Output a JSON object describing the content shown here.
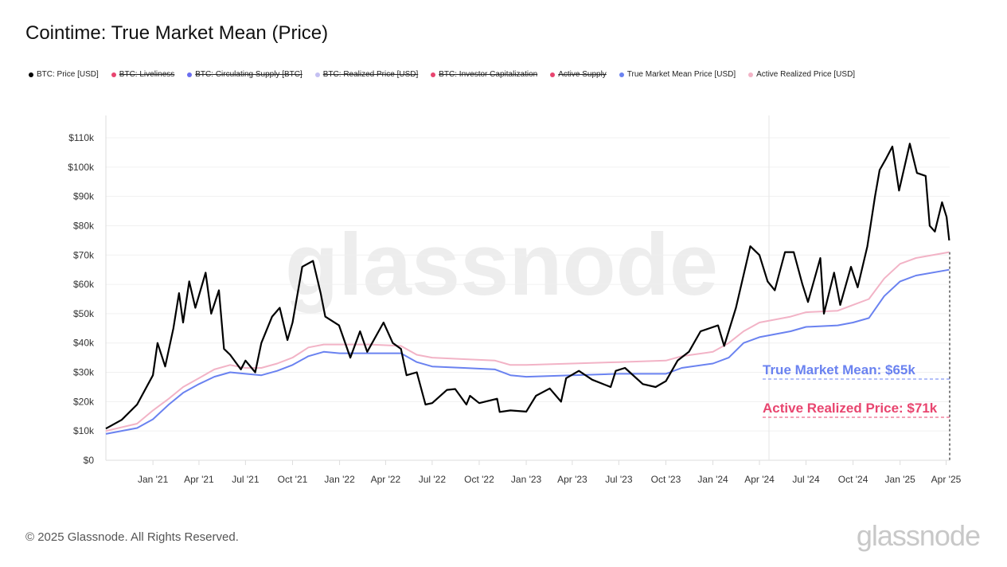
{
  "title": "Cointime: True Market Mean (Price)",
  "legend": [
    {
      "label": "BTC: Price [USD]",
      "color": "#000000",
      "enabled": true
    },
    {
      "label": "BTC: Liveliness",
      "color": "#e8456f",
      "enabled": false
    },
    {
      "label": "BTC: Circulating Supply [BTC]",
      "color": "#6a6ef0",
      "enabled": false
    },
    {
      "label": "BTC: Realized Price [USD]",
      "color": "#c4c0f2",
      "enabled": false
    },
    {
      "label": "BTC: Investor Capitalization",
      "color": "#e8456f",
      "enabled": false
    },
    {
      "label": "Active Supply",
      "color": "#e8456f",
      "enabled": false
    },
    {
      "label": "True Market Mean Price [USD]",
      "color": "#6a82f0",
      "enabled": true
    },
    {
      "label": "Active Realized Price [USD]",
      "color": "#f2b3c6",
      "enabled": true
    }
  ],
  "footer": "© 2025 Glassnode. All Rights Reserved.",
  "logo": "glassnode",
  "chart_data": {
    "type": "line",
    "title": "Cointime: True Market Mean (Price)",
    "xlim": [
      "2020-10-01",
      "2025-04-08"
    ],
    "ylim": [
      0,
      110000
    ],
    "x_ticks": [
      "Jan '21",
      "Apr '21",
      "Jul '21",
      "Oct '21",
      "Jan '22",
      "Apr '22",
      "Jul '22",
      "Oct '22",
      "Jan '23",
      "Apr '23",
      "Jul '23",
      "Oct '23",
      "Jan '24",
      "Apr '24",
      "Jul '24",
      "Oct '24",
      "Jan '25",
      "Apr '25"
    ],
    "x_tick_dates": [
      "2021-01-01",
      "2021-04-01",
      "2021-07-01",
      "2021-10-01",
      "2022-01-01",
      "2022-04-01",
      "2022-07-01",
      "2022-10-01",
      "2023-01-01",
      "2023-04-01",
      "2023-07-01",
      "2023-10-01",
      "2024-01-01",
      "2024-04-01",
      "2024-07-01",
      "2024-10-01",
      "2025-01-01",
      "2025-04-01"
    ],
    "y_ticks": [
      0,
      10000,
      20000,
      30000,
      40000,
      50000,
      60000,
      70000,
      80000,
      90000,
      100000,
      110000
    ],
    "y_tick_labels": [
      "$0",
      "$10k",
      "$20k",
      "$30k",
      "$40k",
      "$50k",
      "$60k",
      "$70k",
      "$80k",
      "$90k",
      "$100k",
      "$110k"
    ],
    "grid": true,
    "series": [
      {
        "name": "BTC: Price [USD]",
        "color": "#000000",
        "points": [
          [
            "2020-10-01",
            10800
          ],
          [
            "2020-11-01",
            13800
          ],
          [
            "2020-12-01",
            19000
          ],
          [
            "2021-01-01",
            29000
          ],
          [
            "2021-01-10",
            40000
          ],
          [
            "2021-01-25",
            32000
          ],
          [
            "2021-02-10",
            45000
          ],
          [
            "2021-02-21",
            57000
          ],
          [
            "2021-03-01",
            47000
          ],
          [
            "2021-03-13",
            61000
          ],
          [
            "2021-03-25",
            52000
          ],
          [
            "2021-04-14",
            64000
          ],
          [
            "2021-04-25",
            50000
          ],
          [
            "2021-05-10",
            58000
          ],
          [
            "2021-05-20",
            38000
          ],
          [
            "2021-06-01",
            36000
          ],
          [
            "2021-06-22",
            31000
          ],
          [
            "2021-07-01",
            34000
          ],
          [
            "2021-07-20",
            30000
          ],
          [
            "2021-08-01",
            40000
          ],
          [
            "2021-08-22",
            49000
          ],
          [
            "2021-09-06",
            52000
          ],
          [
            "2021-09-21",
            41000
          ],
          [
            "2021-10-01",
            47000
          ],
          [
            "2021-10-20",
            66000
          ],
          [
            "2021-11-10",
            68000
          ],
          [
            "2021-11-25",
            57000
          ],
          [
            "2021-12-04",
            49000
          ],
          [
            "2021-12-31",
            46000
          ],
          [
            "2022-01-22",
            35000
          ],
          [
            "2022-02-10",
            44000
          ],
          [
            "2022-02-24",
            37000
          ],
          [
            "2022-03-28",
            47000
          ],
          [
            "2022-04-15",
            40000
          ],
          [
            "2022-05-01",
            38000
          ],
          [
            "2022-05-12",
            29000
          ],
          [
            "2022-06-01",
            30000
          ],
          [
            "2022-06-18",
            19000
          ],
          [
            "2022-07-01",
            19500
          ],
          [
            "2022-07-30",
            24000
          ],
          [
            "2022-08-15",
            24300
          ],
          [
            "2022-09-06",
            19000
          ],
          [
            "2022-09-13",
            22000
          ],
          [
            "2022-10-01",
            19500
          ],
          [
            "2022-11-05",
            21000
          ],
          [
            "2022-11-10",
            16500
          ],
          [
            "2022-12-01",
            17000
          ],
          [
            "2023-01-01",
            16600
          ],
          [
            "2023-01-20",
            22000
          ],
          [
            "2023-02-16",
            24500
          ],
          [
            "2023-03-10",
            20000
          ],
          [
            "2023-03-20",
            28000
          ],
          [
            "2023-04-14",
            30500
          ],
          [
            "2023-05-10",
            27500
          ],
          [
            "2023-06-15",
            25000
          ],
          [
            "2023-06-25",
            30500
          ],
          [
            "2023-07-13",
            31500
          ],
          [
            "2023-08-17",
            26000
          ],
          [
            "2023-09-11",
            25000
          ],
          [
            "2023-10-01",
            27000
          ],
          [
            "2023-10-24",
            34000
          ],
          [
            "2023-11-15",
            37000
          ],
          [
            "2023-12-08",
            44000
          ],
          [
            "2024-01-11",
            46000
          ],
          [
            "2024-01-23",
            39000
          ],
          [
            "2024-02-15",
            52000
          ],
          [
            "2024-03-14",
            73000
          ],
          [
            "2024-04-01",
            70000
          ],
          [
            "2024-04-17",
            61000
          ],
          [
            "2024-05-01",
            58000
          ],
          [
            "2024-05-21",
            71000
          ],
          [
            "2024-06-07",
            71000
          ],
          [
            "2024-06-24",
            60000
          ],
          [
            "2024-07-05",
            54000
          ],
          [
            "2024-07-29",
            69000
          ],
          [
            "2024-08-05",
            50000
          ],
          [
            "2024-08-25",
            64000
          ],
          [
            "2024-09-06",
            53000
          ],
          [
            "2024-09-27",
            66000
          ],
          [
            "2024-10-10",
            59000
          ],
          [
            "2024-10-29",
            73000
          ],
          [
            "2024-11-13",
            90000
          ],
          [
            "2024-11-22",
            99000
          ],
          [
            "2024-12-05",
            103000
          ],
          [
            "2024-12-17",
            107000
          ],
          [
            "2024-12-30",
            92000
          ],
          [
            "2025-01-20",
            108000
          ],
          [
            "2025-02-03",
            98000
          ],
          [
            "2025-02-20",
            97000
          ],
          [
            "2025-02-28",
            80000
          ],
          [
            "2025-03-10",
            78000
          ],
          [
            "2025-03-24",
            88000
          ],
          [
            "2025-04-02",
            83000
          ],
          [
            "2025-04-07",
            75000
          ]
        ]
      },
      {
        "name": "True Market Mean Price [USD]",
        "color": "#6a82f0",
        "points": [
          [
            "2020-10-01",
            9000
          ],
          [
            "2020-12-01",
            11000
          ],
          [
            "2021-01-01",
            14000
          ],
          [
            "2021-02-01",
            19000
          ],
          [
            "2021-03-01",
            23000
          ],
          [
            "2021-04-01",
            26000
          ],
          [
            "2021-05-01",
            28500
          ],
          [
            "2021-06-01",
            30000
          ],
          [
            "2021-07-01",
            29500
          ],
          [
            "2021-08-01",
            29000
          ],
          [
            "2021-09-01",
            30500
          ],
          [
            "2021-10-01",
            32500
          ],
          [
            "2021-11-01",
            35500
          ],
          [
            "2021-12-01",
            37000
          ],
          [
            "2022-01-01",
            36500
          ],
          [
            "2022-03-01",
            36500
          ],
          [
            "2022-05-01",
            36500
          ],
          [
            "2022-06-01",
            33500
          ],
          [
            "2022-07-01",
            32000
          ],
          [
            "2022-09-01",
            31500
          ],
          [
            "2022-11-01",
            31000
          ],
          [
            "2022-12-01",
            29000
          ],
          [
            "2023-01-01",
            28500
          ],
          [
            "2023-04-01",
            29000
          ],
          [
            "2023-07-01",
            29500
          ],
          [
            "2023-10-01",
            29500
          ],
          [
            "2023-11-01",
            31500
          ],
          [
            "2024-01-01",
            33000
          ],
          [
            "2024-02-01",
            35000
          ],
          [
            "2024-03-01",
            40000
          ],
          [
            "2024-04-01",
            42000
          ],
          [
            "2024-06-01",
            44000
          ],
          [
            "2024-07-01",
            45500
          ],
          [
            "2024-09-01",
            46000
          ],
          [
            "2024-10-01",
            47000
          ],
          [
            "2024-11-01",
            48500
          ],
          [
            "2024-12-01",
            56000
          ],
          [
            "2025-01-01",
            61000
          ],
          [
            "2025-02-01",
            63000
          ],
          [
            "2025-04-07",
            65000
          ]
        ]
      },
      {
        "name": "Active Realized Price [USD]",
        "color": "#f2b3c6",
        "points": [
          [
            "2020-10-01",
            10000
          ],
          [
            "2020-12-01",
            12500
          ],
          [
            "2021-01-01",
            17000
          ],
          [
            "2021-02-01",
            21000
          ],
          [
            "2021-03-01",
            25000
          ],
          [
            "2021-04-01",
            28000
          ],
          [
            "2021-05-01",
            31000
          ],
          [
            "2021-06-01",
            32500
          ],
          [
            "2021-07-01",
            31500
          ],
          [
            "2021-08-01",
            31500
          ],
          [
            "2021-09-01",
            33000
          ],
          [
            "2021-10-01",
            35000
          ],
          [
            "2021-11-01",
            38500
          ],
          [
            "2021-12-01",
            39500
          ],
          [
            "2022-03-01",
            39500
          ],
          [
            "2022-05-01",
            39000
          ],
          [
            "2022-06-01",
            36000
          ],
          [
            "2022-07-01",
            35000
          ],
          [
            "2022-09-01",
            34500
          ],
          [
            "2022-11-01",
            34000
          ],
          [
            "2022-12-01",
            32500
          ],
          [
            "2023-01-01",
            32500
          ],
          [
            "2023-04-01",
            33000
          ],
          [
            "2023-07-01",
            33500
          ],
          [
            "2023-10-01",
            34000
          ],
          [
            "2023-11-01",
            35500
          ],
          [
            "2024-01-01",
            37000
          ],
          [
            "2024-02-01",
            40000
          ],
          [
            "2024-03-01",
            44000
          ],
          [
            "2024-04-01",
            47000
          ],
          [
            "2024-06-01",
            49000
          ],
          [
            "2024-07-01",
            50500
          ],
          [
            "2024-09-01",
            51000
          ],
          [
            "2024-10-01",
            53000
          ],
          [
            "2024-11-01",
            55000
          ],
          [
            "2024-12-01",
            62000
          ],
          [
            "2025-01-01",
            67000
          ],
          [
            "2025-02-01",
            69000
          ],
          [
            "2025-04-07",
            71000
          ]
        ]
      }
    ],
    "annotations": [
      {
        "text": "True Market Mean: $65k",
        "color": "#6a82f0",
        "value": 65000
      },
      {
        "text": "Active Realized Price: $71k",
        "color": "#e8456f",
        "value": 71000
      }
    ],
    "legend_position": "top-left"
  }
}
